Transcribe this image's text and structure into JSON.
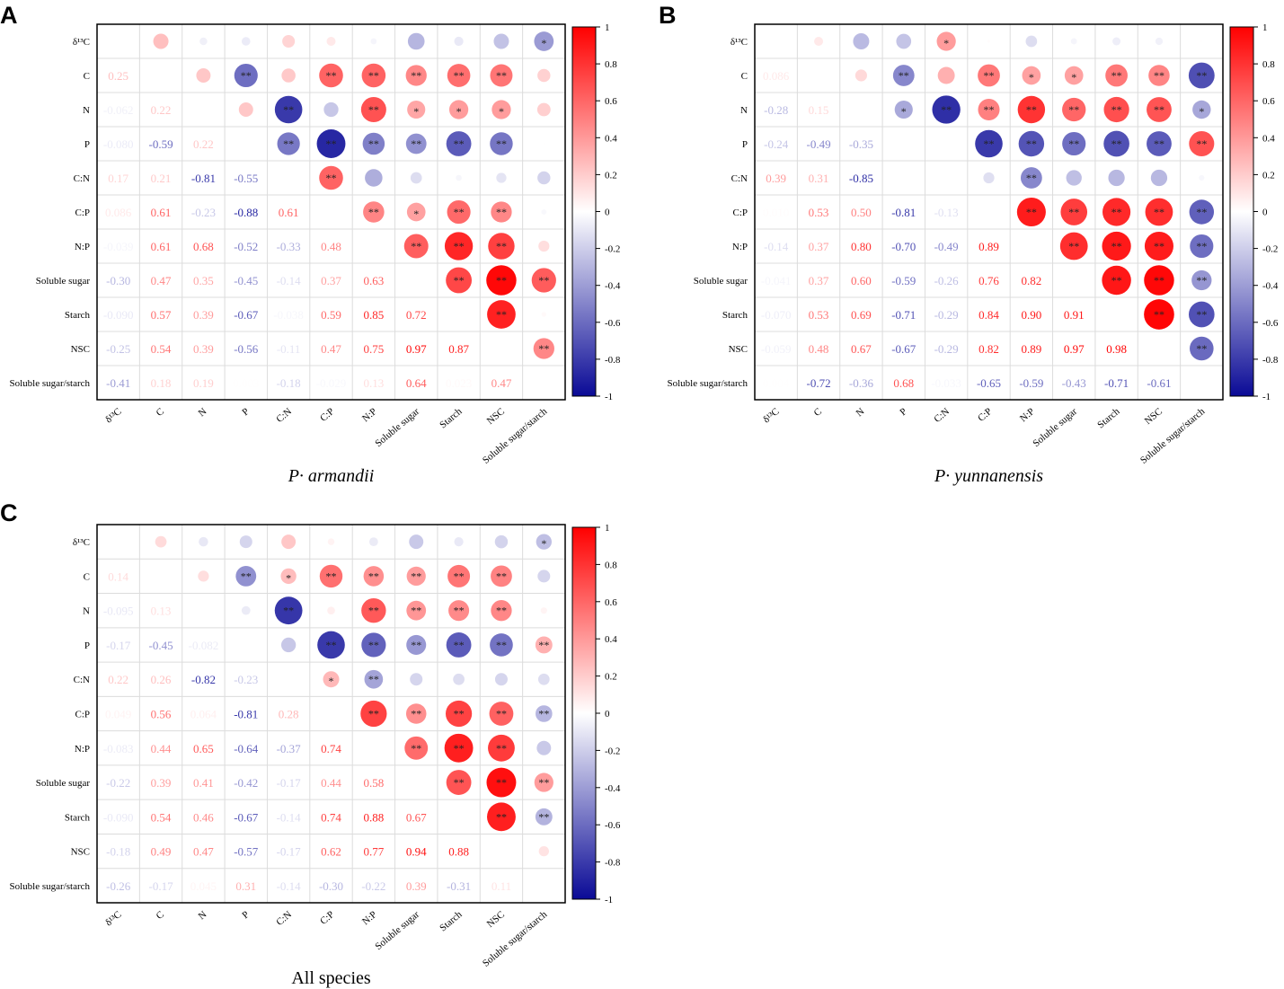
{
  "chart_data": [
    {
      "type": "heatmap",
      "panel_letter": "A",
      "title": "P· armandii",
      "variables": [
        "δ¹³C",
        "C",
        "N",
        "P",
        "C:N",
        "C:P",
        "N:P",
        "Soluble sugar",
        "Starch",
        "NSC",
        "Soluble sugar/starch"
      ],
      "lower": [
        [
          "0.25"
        ],
        [
          "-0.062",
          "0.22"
        ],
        [
          "-0.080",
          "-0.59",
          "0.22"
        ],
        [
          "0.17",
          "0.21",
          "-0.81",
          "-0.55"
        ],
        [
          "0.086",
          "0.61",
          "-0.23",
          "-0.88",
          "0.61"
        ],
        [
          "-0.039",
          "0.61",
          "0.68",
          "-0.52",
          "-0.33",
          "0.48"
        ],
        [
          "-0.30",
          "0.47",
          "0.35",
          "-0.45",
          "-0.14",
          "0.37",
          "0.63"
        ],
        [
          "-0.090",
          "0.57",
          "0.39",
          "-0.67",
          "-0.038",
          "0.59",
          "0.85",
          "0.72"
        ],
        [
          "-0.25",
          "0.54",
          "0.39",
          "-0.56",
          "-0.11",
          "0.47",
          "0.75",
          "0.97",
          "0.87"
        ],
        [
          "-0.41",
          "0.18",
          "0.19",
          "0.003",
          "-0.18",
          "-0.029",
          "0.13",
          "0.64",
          "0.023",
          "0.47"
        ]
      ],
      "significance": [
        [
          "",
          "",
          "",
          "",
          "",
          "",
          "",
          "",
          "",
          "*"
        ],
        [
          "",
          "**",
          "",
          "**",
          "**",
          "**",
          "**",
          "**",
          ""
        ],
        [
          "",
          "**",
          "",
          "**",
          "*",
          "*",
          "*",
          ""
        ],
        [
          "**",
          "**",
          "**",
          "**",
          "**",
          "**",
          ""
        ],
        [
          "**",
          "",
          "",
          "",
          "",
          ""
        ],
        [
          "**",
          "*",
          "**",
          "**",
          ""
        ],
        [
          "**",
          "**",
          "**",
          ""
        ],
        [
          "**",
          "**",
          "**"
        ],
        [
          "**",
          ""
        ],
        [
          "**"
        ]
      ],
      "colorbar": {
        "ticks": [
          "1",
          "0.8",
          "0.6",
          "0.4",
          "0.2",
          "0",
          "-0.2",
          "-0.4",
          "-0.6",
          "-0.8",
          "-1"
        ],
        "range": [
          -1,
          1
        ],
        "colors": {
          "high": "#ff0000",
          "mid": "#ffffff",
          "low": "#0a0a96"
        }
      }
    },
    {
      "type": "heatmap",
      "panel_letter": "B",
      "title": "P· yunnanensis",
      "variables": [
        "δ¹³C",
        "C",
        "N",
        "P",
        "C:N",
        "C:P",
        "N:P",
        "Soluble sugar",
        "Starch",
        "NSC",
        "Soluble sugar/starch"
      ],
      "lower": [
        [
          "0.086"
        ],
        [
          "-0.28",
          "0.15"
        ],
        [
          "-0.24",
          "-0.49",
          "-0.35"
        ],
        [
          "0.39",
          "0.31",
          "-0.85",
          "0.0006"
        ],
        [
          "0.010",
          "0.53",
          "0.50",
          "-0.81",
          "-0.13"
        ],
        [
          "-0.14",
          "0.37",
          "0.80",
          "-0.70",
          "-0.49",
          "0.89"
        ],
        [
          "-0.041",
          "0.37",
          "0.60",
          "-0.59",
          "-0.26",
          "0.76",
          "0.82"
        ],
        [
          "-0.070",
          "0.53",
          "0.69",
          "-0.71",
          "-0.29",
          "0.84",
          "0.90",
          "0.91"
        ],
        [
          "-0.059",
          "0.48",
          "0.67",
          "-0.67",
          "-0.29",
          "0.82",
          "0.89",
          "0.97",
          "0.98"
        ],
        [
          "0.004",
          "-0.72",
          "-0.36",
          "0.68",
          "-0.033",
          "-0.65",
          "-0.59",
          "-0.43",
          "-0.71",
          "-0.61"
        ]
      ],
      "significance": [
        [
          "",
          "",
          "",
          "*",
          "",
          "",
          "",
          "",
          "",
          ""
        ],
        [
          "",
          "**",
          "",
          "**",
          "*",
          "*",
          "**",
          "**",
          "**"
        ],
        [
          "*",
          "**",
          "**",
          "**",
          "**",
          "**",
          "**",
          "*"
        ],
        [
          "",
          "**",
          "**",
          "**",
          "**",
          "**",
          "**"
        ],
        [
          "",
          "**",
          "",
          "",
          "",
          ""
        ],
        [
          "**",
          "**",
          "**",
          "**",
          "**"
        ],
        [
          "**",
          "**",
          "**",
          "**"
        ],
        [
          "**",
          "**",
          "**"
        ],
        [
          "**",
          "**"
        ],
        [
          "**"
        ]
      ],
      "colorbar": {
        "ticks": [
          "1",
          "0.8",
          "0.6",
          "0.4",
          "0.2",
          "0",
          "-0.2",
          "-0.4",
          "-0.6",
          "-0.8",
          "-1"
        ],
        "range": [
          -1,
          1
        ],
        "colors": {
          "high": "#ff0000",
          "mid": "#ffffff",
          "low": "#0a0a96"
        }
      }
    },
    {
      "type": "heatmap",
      "panel_letter": "C",
      "title": "All species",
      "variables": [
        "δ¹³C",
        "C",
        "N",
        "P",
        "C:N",
        "C:P",
        "N:P",
        "Soluble sugar",
        "Starch",
        "NSC",
        "Soluble sugar/starch"
      ],
      "lower": [
        [
          "0.14"
        ],
        [
          "-0.095",
          "0.13"
        ],
        [
          "-0.17",
          "-0.45",
          "-0.082"
        ],
        [
          "0.22",
          "0.26",
          "-0.82",
          "-0.23"
        ],
        [
          "0.049",
          "0.56",
          "0.064",
          "-0.81",
          "0.28"
        ],
        [
          "-0.083",
          "0.44",
          "0.65",
          "-0.64",
          "-0.37",
          "0.74"
        ],
        [
          "-0.22",
          "0.39",
          "0.41",
          "-0.42",
          "-0.17",
          "0.44",
          "0.58"
        ],
        [
          "-0.090",
          "0.54",
          "0.46",
          "-0.67",
          "-0.14",
          "0.74",
          "0.88",
          "0.67"
        ],
        [
          "-0.18",
          "0.49",
          "0.47",
          "-0.57",
          "-0.17",
          "0.62",
          "0.77",
          "0.94",
          "0.88"
        ],
        [
          "-0.26",
          "-0.17",
          "0.045",
          "0.31",
          "-0.14",
          "-0.30",
          "-0.22",
          "0.39",
          "-0.31",
          "0.11"
        ]
      ],
      "significance": [
        [
          "",
          "",
          "",
          "",
          "",
          "",
          "",
          "",
          "",
          "*"
        ],
        [
          "",
          "**",
          "*",
          "**",
          "**",
          "**",
          "**",
          "**",
          ""
        ],
        [
          "",
          "**",
          "",
          "**",
          "**",
          "**",
          "**",
          ""
        ],
        [
          "",
          "**",
          "**",
          "**",
          "**",
          "**",
          "**"
        ],
        [
          "*",
          "**",
          "",
          "",
          "",
          ""
        ],
        [
          "**",
          "**",
          "**",
          "**",
          "**"
        ],
        [
          "**",
          "**",
          "**",
          ""
        ],
        [
          "**",
          "**",
          "**"
        ],
        [
          "**",
          "**"
        ],
        [
          ""
        ]
      ],
      "colorbar": {
        "ticks": [
          "1",
          "0.8",
          "0.6",
          "0.4",
          "0.2",
          "0",
          "-0.2",
          "-0.4",
          "-0.6",
          "-0.8",
          "-1"
        ],
        "range": [
          -1,
          1
        ],
        "colors": {
          "high": "#ff0000",
          "mid": "#ffffff",
          "low": "#0a0a96"
        }
      }
    }
  ]
}
